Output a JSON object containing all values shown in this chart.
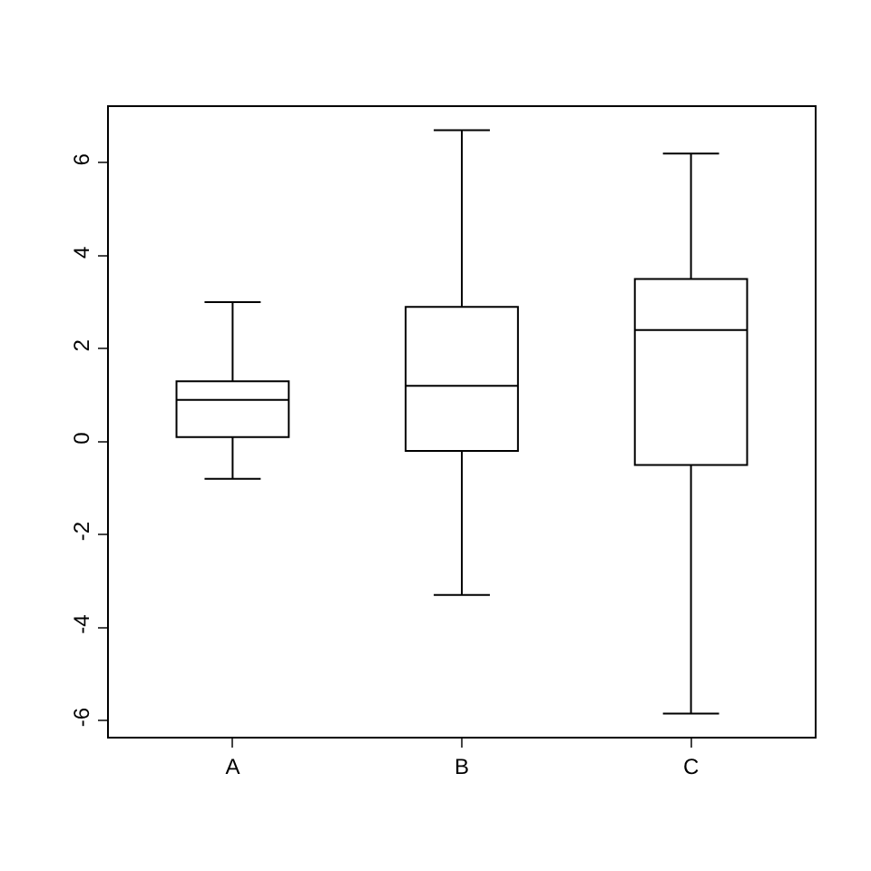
{
  "chart_data": {
    "type": "box",
    "categories": [
      "A",
      "B",
      "C"
    ],
    "boxes": [
      {
        "low": -0.8,
        "q1": 0.1,
        "median": 0.9,
        "q3": 1.3,
        "high": 3.0
      },
      {
        "low": -3.3,
        "q1": -0.2,
        "median": 1.2,
        "q3": 2.9,
        "high": 6.7
      },
      {
        "low": -5.85,
        "q1": -0.5,
        "median": 2.4,
        "q3": 3.5,
        "high": 6.2
      }
    ],
    "color": "#000000",
    "ylim": [
      -6.35,
      7.2
    ],
    "yticks": [
      -6,
      -4,
      -2,
      0,
      2,
      4,
      6
    ]
  }
}
